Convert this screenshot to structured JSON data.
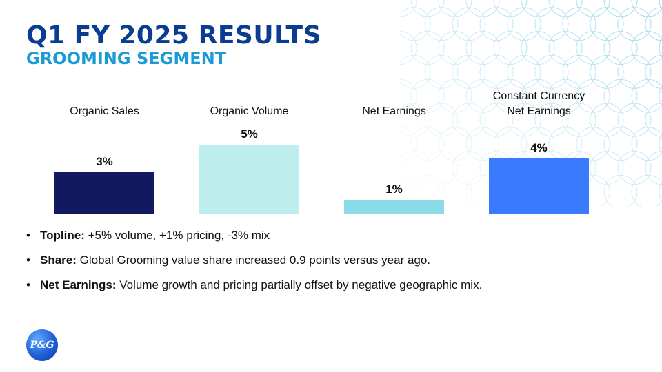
{
  "header": {
    "title": "Q1 FY 2025 RESULTS",
    "subtitle": "GROOMING SEGMENT"
  },
  "chart_data": {
    "type": "bar",
    "title": "",
    "xlabel": "",
    "ylabel": "",
    "categories": [
      [
        "Organic Sales"
      ],
      [
        "Organic Volume"
      ],
      [
        "Net Earnings"
      ],
      [
        "Constant Currency",
        "Net Earnings"
      ]
    ],
    "values": [
      3,
      5,
      1,
      4
    ],
    "value_labels": [
      "3%",
      "5%",
      "1%",
      "4%"
    ],
    "colors": [
      "#12195e",
      "#bdeeed",
      "#8adde8",
      "#3a7bfd"
    ],
    "ylim": [
      0,
      5.5
    ],
    "grid": false,
    "legend": "none"
  },
  "bullets": [
    {
      "term": "Topline:",
      "text": " +5% volume, +1% pricing, -3% mix"
    },
    {
      "term": "Share:",
      "text": " Global Grooming value share increased 0.9 points versus year ago."
    },
    {
      "term": "Net Earnings:",
      "text": " Volume growth and pricing partially offset by negative geographic mix."
    }
  ],
  "logo": {
    "text": "P&G"
  },
  "colors": {
    "title": "#0a3d91",
    "subtitle": "#1a9ad6",
    "decor": "#9ed8ec"
  }
}
